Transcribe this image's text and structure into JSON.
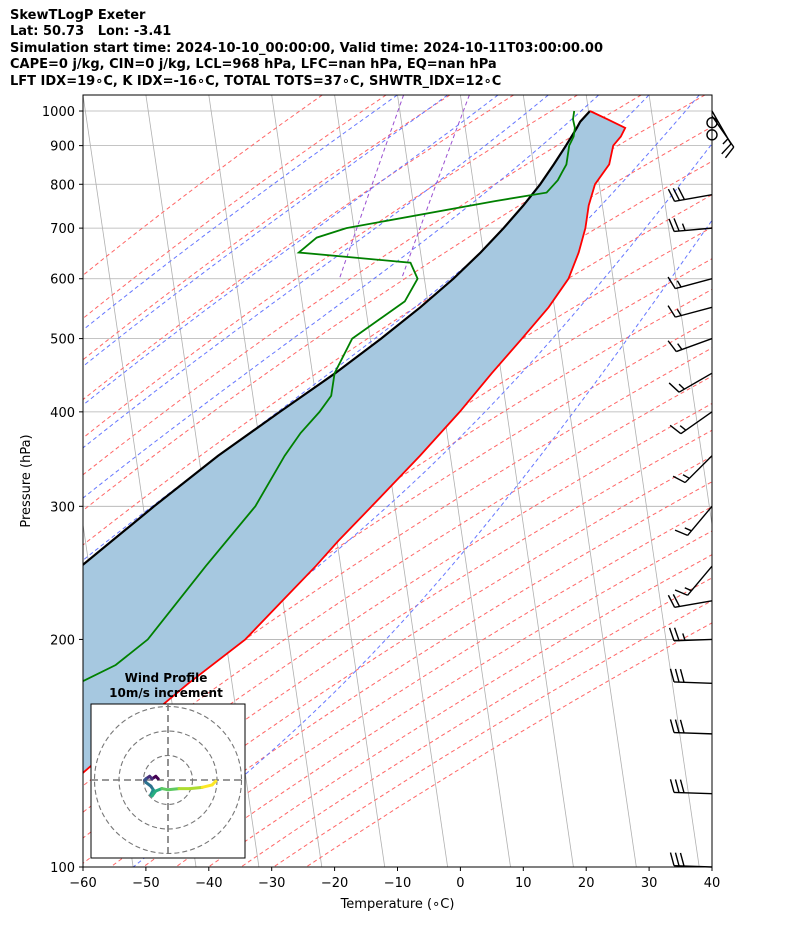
{
  "header": {
    "lines": [
      "SkewTLogP Exeter",
      "Lat: 50.73   Lon: -3.41",
      "Simulation start time: 2024-10-10_00:00:00, Valid time: 2024-10-11T03:00:00.00",
      "CAPE=0 j/kg, CIN=0 j/kg, LCL=968 hPa, LFC=nan hPa, EQ=nan hPa",
      "LFT IDX=19∘C, K IDX=-16∘C, TOTAL TOTS=37∘C, SHWTR_IDX=12∘C"
    ]
  },
  "chart_data": {
    "type": "skewt-logp",
    "xlabel": "Temperature (∘C)",
    "ylabel": "Pressure (hPa)",
    "xlim": [
      -60,
      40
    ],
    "ylim": [
      1050,
      100
    ],
    "x_scale": "linear-skewed",
    "y_scale": "log",
    "x_ticks": [
      -60,
      -50,
      -40,
      -30,
      -20,
      -10,
      0,
      10,
      20,
      30,
      40
    ],
    "y_ticks": [
      100,
      200,
      300,
      400,
      500,
      600,
      700,
      800,
      900,
      1000
    ],
    "grid": true,
    "colors": {
      "temperature": "#ff0000",
      "dewpoint": "#008000",
      "parcel": "#000000",
      "cape_fill": "#a6c8e0",
      "dry_adiabats": "#ff6666",
      "moist_adiabats": "#6677ff",
      "isotherms": "#b0b0b0",
      "mixing_ratio": "#9a4fd0"
    },
    "series": [
      {
        "key": "temperature",
        "pressure": [
          1000,
          975,
          950,
          925,
          900,
          850,
          800,
          750,
          700,
          650,
          600,
          550,
          500,
          450,
          400,
          350,
          300,
          270,
          250,
          225,
          200,
          175,
          150,
          125,
          100
        ],
        "values": [
          3.0,
          6.0,
          9.0,
          8.5,
          7.5,
          7.3,
          5.5,
          5.0,
          5.0,
          4.5,
          3.5,
          1.0,
          -2.5,
          -6.5,
          -10.7,
          -16.0,
          -22.5,
          -27.0,
          -30.0,
          -34.5,
          -39.5,
          -47.5,
          -56.0,
          -65.5,
          -77.5
        ]
      },
      {
        "key": "dewpoint",
        "pressure": [
          1000,
          975,
          950,
          925,
          900,
          850,
          830,
          810,
          800,
          780,
          760,
          700,
          680,
          650,
          630,
          600,
          560,
          500,
          450,
          420,
          400,
          375,
          350,
          300,
          250,
          200,
          185,
          175,
          150,
          125,
          100
        ],
        "values": [
          0.5,
          0.5,
          1.0,
          1.0,
          0.5,
          0.5,
          0.0,
          -0.5,
          -1.0,
          -2.0,
          -10.0,
          -33.0,
          -37.5,
          -40.0,
          -22.0,
          -20.5,
          -22.0,
          -29.5,
          -31.5,
          -31.5,
          -33.0,
          -35.5,
          -37.5,
          -41.0,
          -47.5,
          -55.0,
          -59.5,
          -65.0,
          -73.0,
          -80.5,
          -89.5
        ]
      },
      {
        "key": "parcel",
        "pressure": [
          1000,
          968,
          950,
          900,
          850,
          800,
          750,
          700,
          650,
          600,
          550,
          500,
          450,
          400,
          350,
          300,
          250,
          200,
          150,
          125,
          100
        ],
        "values": [
          3.0,
          1.7,
          1.3,
          0.0,
          -1.5,
          -3.2,
          -5.4,
          -8.0,
          -11.1,
          -14.8,
          -19.4,
          -24.9,
          -31.4,
          -39.3,
          -48.1,
          -57.1,
          -67.3,
          -80.5,
          -92.2,
          -98.5,
          -106.5
        ]
      }
    ],
    "wind_barbs": {
      "pressure": [
        100,
        125,
        150,
        175,
        200,
        225,
        250,
        300,
        350,
        400,
        450,
        500,
        550,
        600,
        700,
        775,
        900,
        950
      ],
      "speed_kt": [
        30,
        30,
        30,
        30,
        25,
        20,
        15,
        15,
        15,
        15,
        15,
        15,
        15,
        15,
        25,
        30,
        0,
        0
      ],
      "direction_deg": [
        272,
        272,
        272,
        272,
        268,
        260,
        220,
        220,
        225,
        235,
        240,
        250,
        255,
        255,
        265,
        260,
        0,
        0
      ],
      "calm_circles": [
        930,
        965
      ],
      "low_level_barbs": [
        {
          "pressure": 1000,
          "speed_kt": 15,
          "direction_deg": 150
        },
        {
          "pressure": 985,
          "speed_kt": 10,
          "direction_deg": 145
        }
      ]
    },
    "hodograph": {
      "title": "Wind Profile",
      "subtitle": "10m/s increment",
      "rings_ms": [
        10,
        20,
        30
      ],
      "u": [
        -4.0,
        -5.0,
        -6.5,
        -7.5,
        -9.0,
        -9.5,
        -9.0,
        -7.0,
        -6.0,
        -7.0,
        -6.5,
        -5.0,
        -2.5,
        0.0,
        4.5,
        9.0,
        14.0,
        18.0,
        19.5
      ],
      "v": [
        0.5,
        1.5,
        0.5,
        1.5,
        0.5,
        0.0,
        -1.0,
        -2.5,
        -4.0,
        -6.0,
        -6.5,
        -4.5,
        -3.5,
        -4.0,
        -3.5,
        -3.5,
        -3.0,
        -2.0,
        -0.5
      ]
    }
  }
}
